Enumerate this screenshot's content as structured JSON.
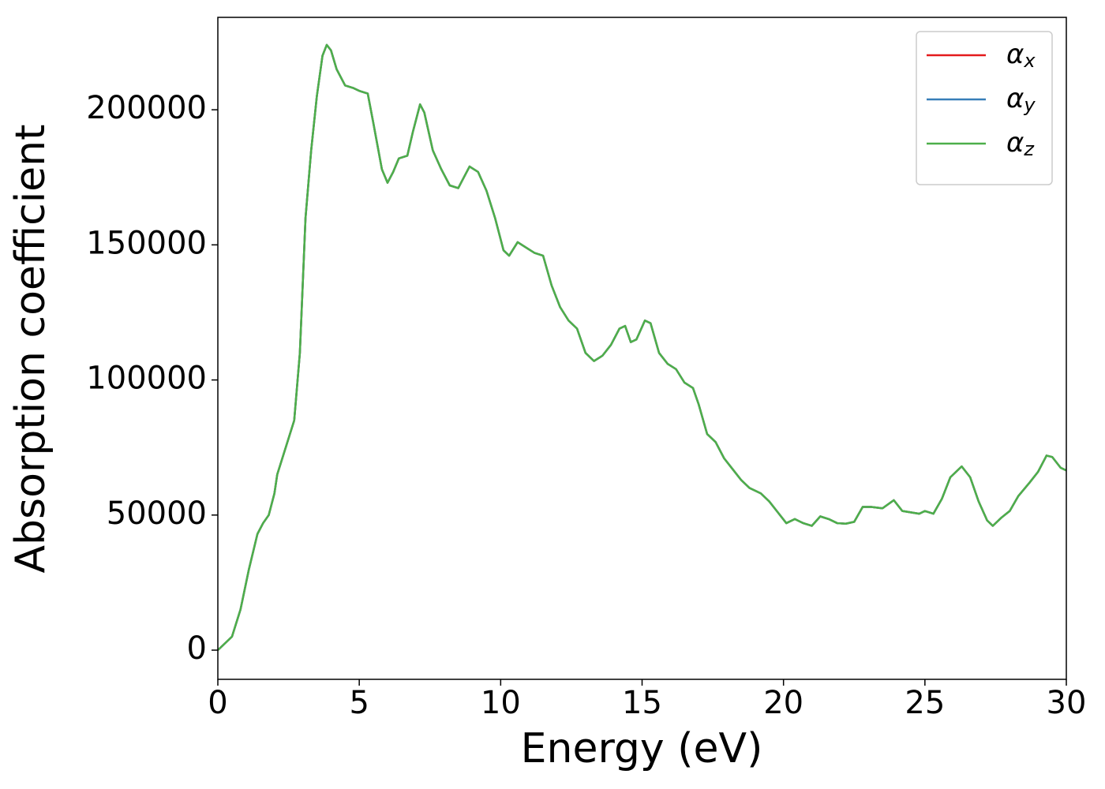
{
  "chart_data": {
    "type": "line",
    "xlabel": "Energy (eV)",
    "ylabel": "Absorption coefficient",
    "xlim": [
      0,
      30
    ],
    "xticks": [
      0,
      5,
      10,
      15,
      20,
      25,
      30
    ],
    "ylim": [
      -10800,
      234200
    ],
    "yticks": [
      0,
      50000,
      100000,
      150000,
      200000
    ],
    "legend": "upper right",
    "x": [
      0,
      0.3,
      0.5,
      0.8,
      1.1,
      1.4,
      1.6,
      1.8,
      2.0,
      2.1,
      2.4,
      2.7,
      2.9,
      3.1,
      3.3,
      3.5,
      3.7,
      3.85,
      4.0,
      4.2,
      4.5,
      4.8,
      5.0,
      5.3,
      5.5,
      5.8,
      6.0,
      6.2,
      6.4,
      6.7,
      6.9,
      7.15,
      7.3,
      7.6,
      7.9,
      8.2,
      8.5,
      8.7,
      8.9,
      9.2,
      9.5,
      9.8,
      10.1,
      10.3,
      10.6,
      10.9,
      11.2,
      11.5,
      11.8,
      12.1,
      12.4,
      12.7,
      13.0,
      13.3,
      13.6,
      13.9,
      14.2,
      14.4,
      14.6,
      14.8,
      15.1,
      15.3,
      15.6,
      15.9,
      16.2,
      16.5,
      16.8,
      17.0,
      17.3,
      17.6,
      17.9,
      18.2,
      18.5,
      18.8,
      19.2,
      19.5,
      19.8,
      20.1,
      20.4,
      20.7,
      21.0,
      21.3,
      21.6,
      21.9,
      22.2,
      22.5,
      22.8,
      23.1,
      23.5,
      23.9,
      24.2,
      24.5,
      24.8,
      25.0,
      25.3,
      25.6,
      25.9,
      26.3,
      26.6,
      26.9,
      27.2,
      27.4,
      27.7,
      28.0,
      28.3,
      28.7,
      29.0,
      29.3,
      29.5,
      29.8,
      30.0
    ],
    "series": [
      {
        "name": "αx",
        "color": "#e41a1c",
        "values": [
          0,
          3000,
          5000,
          15000,
          30000,
          43000,
          47000,
          50000,
          58000,
          65000,
          75000,
          85000,
          110000,
          160000,
          185000,
          205000,
          220000,
          224000,
          222000,
          215000,
          209000,
          208000,
          207000,
          206000,
          195000,
          178000,
          173000,
          177000,
          182000,
          183000,
          192000,
          202000,
          199000,
          185000,
          178000,
          172000,
          171000,
          175000,
          179000,
          177000,
          170000,
          160000,
          148000,
          146000,
          151000,
          149000,
          147000,
          146000,
          135000,
          127000,
          122000,
          119000,
          110000,
          107000,
          109000,
          113000,
          119000,
          120000,
          114000,
          115000,
          122000,
          121000,
          110000,
          106000,
          104000,
          99000,
          97000,
          91000,
          80000,
          77000,
          71000,
          67000,
          63000,
          60000,
          58000,
          55000,
          51000,
          47000,
          48500,
          47000,
          46000,
          49500,
          48500,
          47000,
          46800,
          47500,
          53000,
          53000,
          52500,
          55500,
          51500,
          51000,
          50500,
          51500,
          50500,
          56000,
          64000,
          68000,
          64000,
          55000,
          48000,
          46000,
          49000,
          51500,
          57000,
          62000,
          66000,
          72000,
          71500,
          67500,
          66500
        ]
      },
      {
        "name": "αy",
        "color": "#377eb8",
        "values": [
          0,
          3000,
          5000,
          15000,
          30000,
          43000,
          47000,
          50000,
          58000,
          65000,
          75000,
          85000,
          110000,
          160000,
          185000,
          205000,
          220000,
          224000,
          222000,
          215000,
          209000,
          208000,
          207000,
          206000,
          195000,
          178000,
          173000,
          177000,
          182000,
          183000,
          192000,
          202000,
          199000,
          185000,
          178000,
          172000,
          171000,
          175000,
          179000,
          177000,
          170000,
          160000,
          148000,
          146000,
          151000,
          149000,
          147000,
          146000,
          135000,
          127000,
          122000,
          119000,
          110000,
          107000,
          109000,
          113000,
          119000,
          120000,
          114000,
          115000,
          122000,
          121000,
          110000,
          106000,
          104000,
          99000,
          97000,
          91000,
          80000,
          77000,
          71000,
          67000,
          63000,
          60000,
          58000,
          55000,
          51000,
          47000,
          48500,
          47000,
          46000,
          49500,
          48500,
          47000,
          46800,
          47500,
          53000,
          53000,
          52500,
          55500,
          51500,
          51000,
          50500,
          51500,
          50500,
          56000,
          64000,
          68000,
          64000,
          55000,
          48000,
          46000,
          49000,
          51500,
          57000,
          62000,
          66000,
          72000,
          71500,
          67500,
          66500
        ]
      },
      {
        "name": "αz",
        "color": "#4daf4a",
        "values": [
          0,
          3000,
          5000,
          15000,
          30000,
          43000,
          47000,
          50000,
          58000,
          65000,
          75000,
          85000,
          110000,
          160000,
          185000,
          205000,
          220000,
          224000,
          222000,
          215000,
          209000,
          208000,
          207000,
          206000,
          195000,
          178000,
          173000,
          177000,
          182000,
          183000,
          192000,
          202000,
          199000,
          185000,
          178000,
          172000,
          171000,
          175000,
          179000,
          177000,
          170000,
          160000,
          148000,
          146000,
          151000,
          149000,
          147000,
          146000,
          135000,
          127000,
          122000,
          119000,
          110000,
          107000,
          109000,
          113000,
          119000,
          120000,
          114000,
          115000,
          122000,
          121000,
          110000,
          106000,
          104000,
          99000,
          97000,
          91000,
          80000,
          77000,
          71000,
          67000,
          63000,
          60000,
          58000,
          55000,
          51000,
          47000,
          48500,
          47000,
          46000,
          49500,
          48500,
          47000,
          46800,
          47500,
          53000,
          53000,
          52500,
          55500,
          51500,
          51000,
          50500,
          51500,
          50500,
          56000,
          64000,
          68000,
          64000,
          55000,
          48000,
          46000,
          49000,
          51500,
          57000,
          62000,
          66000,
          72000,
          71500,
          67500,
          66500
        ]
      }
    ]
  }
}
